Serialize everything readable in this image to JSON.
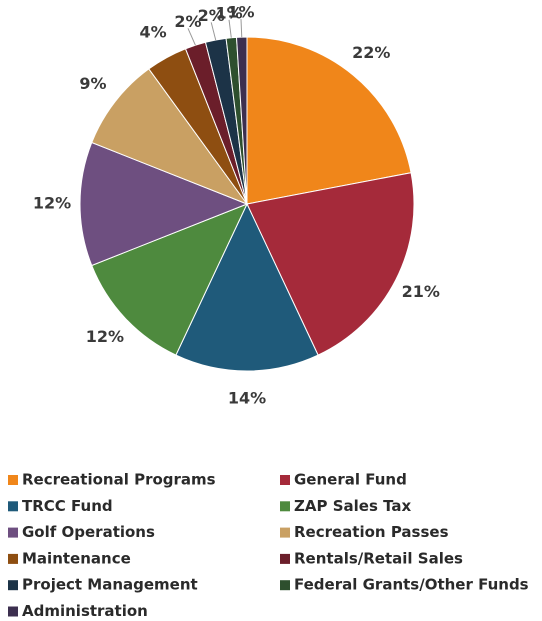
{
  "chart_data": {
    "type": "pie",
    "categories": [
      "Recreational Programs",
      "General Fund",
      "TRCC Fund",
      "ZAP Sales Tax",
      "Golf Operations",
      "Recreation Passes",
      "Maintenance",
      "Rentals/Retail Sales",
      "Project Management",
      "Federal Grants/Other Funds",
      "Administration"
    ],
    "values": [
      22,
      21,
      14,
      12,
      12,
      9,
      4,
      2,
      2,
      1,
      1
    ],
    "value_labels": [
      "22%",
      "21%",
      "14%",
      "12%",
      "12%",
      "9%",
      "4%",
      "2%",
      "2%",
      "1%",
      "1%"
    ],
    "colors": [
      "#f0861a",
      "#a52a3a",
      "#1f5a7a",
      "#4e8a3e",
      "#6e4f80",
      "#c9a063",
      "#8e4e11",
      "#6b1e2a",
      "#1c3347",
      "#2e4f2e",
      "#3c2f4f"
    ],
    "legend": "bottom"
  }
}
